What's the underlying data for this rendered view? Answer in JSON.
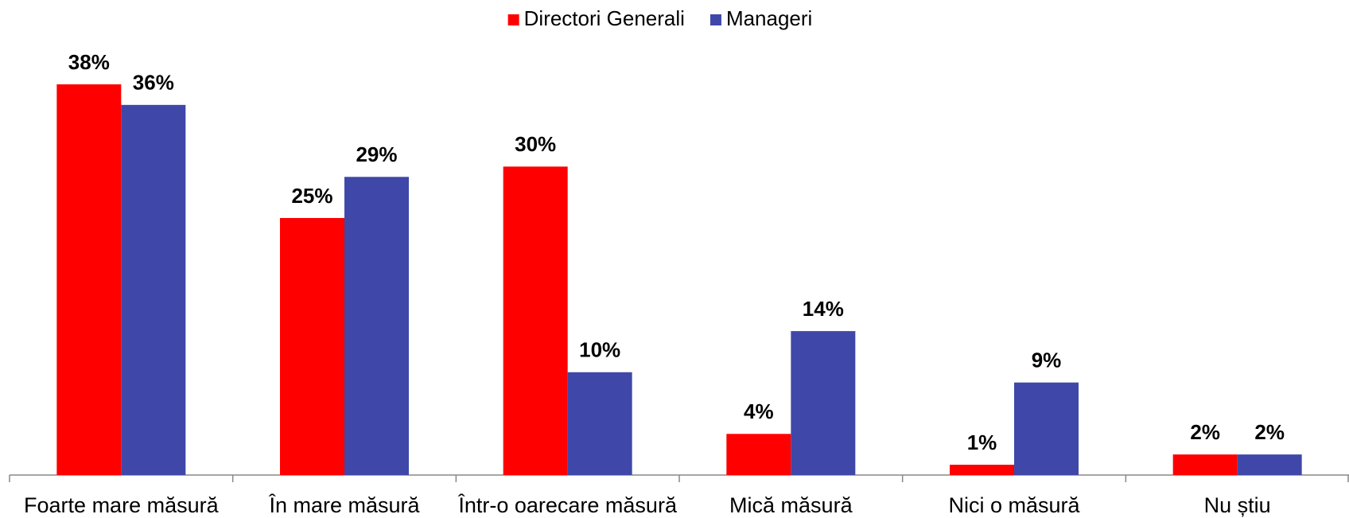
{
  "chart_data": {
    "type": "bar",
    "categories": [
      "Foarte mare măsură",
      "În mare măsură",
      "Într-o oarecare măsură",
      "Mică măsură",
      "Nici o măsură",
      "Nu știu"
    ],
    "series": [
      {
        "name": "Directori Generali",
        "color": "#ff0000",
        "values": [
          38,
          25,
          30,
          4,
          1,
          2
        ],
        "value_labels": [
          "38%",
          "25%",
          "30%",
          "4%",
          "1%",
          "2%"
        ]
      },
      {
        "name": "Manageri",
        "color": "#3f48a8",
        "values": [
          36,
          29,
          10,
          14,
          9,
          2
        ],
        "value_labels": [
          "36%",
          "29%",
          "10%",
          "14%",
          "9%",
          "2%"
        ]
      }
    ],
    "legend": "top"
  }
}
